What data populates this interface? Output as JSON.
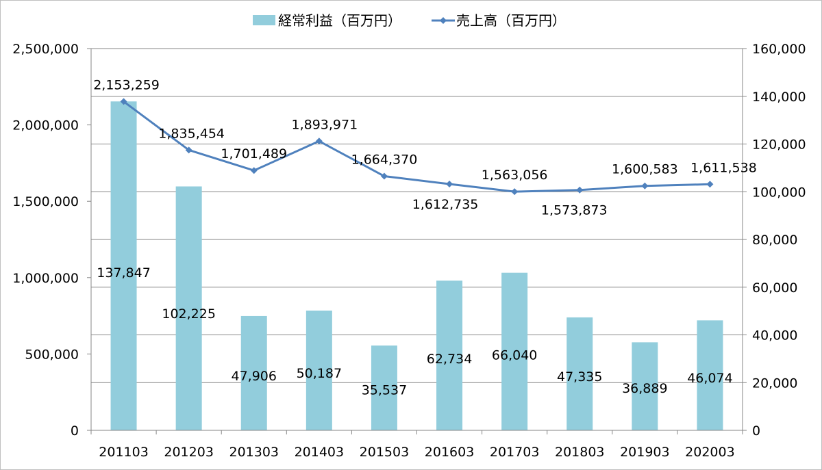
{
  "chart_data": {
    "type": "bar+line",
    "title": "",
    "categories": [
      "201103",
      "201203",
      "201303",
      "201403",
      "201503",
      "201603",
      "201703",
      "201803",
      "201903",
      "202003"
    ],
    "series": [
      {
        "name": "経常利益（百万円）",
        "type": "bar",
        "axis": "right",
        "color": "#92cddc",
        "values": [
          137847,
          102225,
          47906,
          50187,
          35537,
          62734,
          66040,
          47335,
          36889,
          46074
        ],
        "labels": [
          "137,847",
          "102,225",
          "47,906",
          "50,187",
          "35,537",
          "62,734",
          "66,040",
          "47,335",
          "36,889",
          "46,074"
        ]
      },
      {
        "name": "売上高（百万円）",
        "type": "line",
        "axis": "left",
        "color": "#4f81bd",
        "marker": "diamond",
        "values": [
          2153259,
          1835454,
          1701489,
          1893971,
          1664370,
          1612735,
          1563056,
          1573873,
          1600583,
          1611538
        ],
        "labels": [
          "2,153,259",
          "1,835,454",
          "1,701,489",
          "1,893,971",
          "1,664,370",
          "1,612,735",
          "1,563,056",
          "1,573,873",
          "1,600,583",
          "1,611,538"
        ]
      }
    ],
    "y_left": {
      "ylim": [
        0,
        2500000
      ],
      "ticks": [
        0,
        500000,
        1000000,
        1500000,
        2000000,
        2500000
      ],
      "tick_labels": [
        "0",
        "500,000",
        "1,000,000",
        "1,500,000",
        "2,000,000",
        "2,500,000"
      ]
    },
    "y_right": {
      "ylim": [
        0,
        160000
      ],
      "ticks": [
        0,
        20000,
        40000,
        60000,
        80000,
        100000,
        120000,
        140000,
        160000
      ],
      "tick_labels": [
        "0",
        "20,000",
        "40,000",
        "60,000",
        "80,000",
        "100,000",
        "120,000",
        "140,000",
        "160,000"
      ]
    },
    "grid": true,
    "legend": "top"
  }
}
